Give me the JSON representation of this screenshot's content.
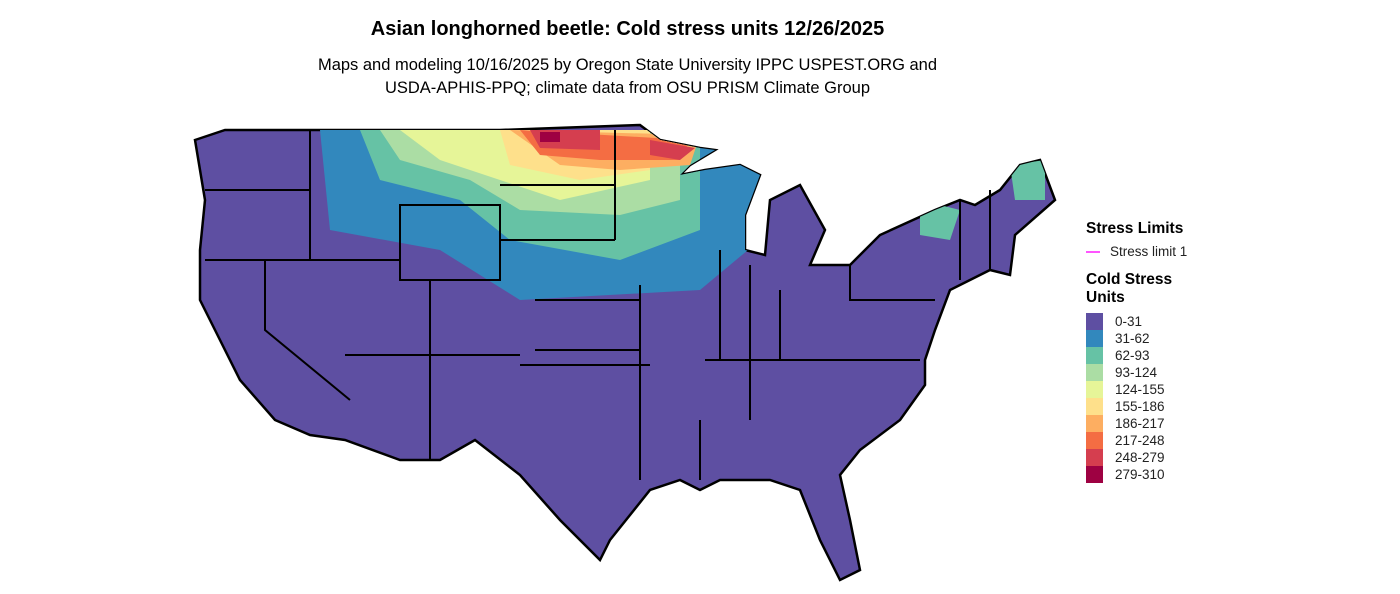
{
  "title": "Asian longhorned beetle: Cold stress units 12/26/2025",
  "subtitle_line1": "Maps and modeling 10/16/2025 by Oregon State University IPPC USPEST.ORG and",
  "subtitle_line2": "USDA-APHIS-PPQ; climate data from OSU PRISM Climate Group",
  "legend": {
    "stress_limits_title": "Stress Limits",
    "stress_limit_label": "Stress limit 1",
    "stress_limit_color": "#ff55ff",
    "units_title_1": "Cold Stress",
    "units_title_2": "Units",
    "classes": [
      {
        "label": "0-31",
        "color": "#5E4FA2"
      },
      {
        "label": "31-62",
        "color": "#3288BD"
      },
      {
        "label": "62-93",
        "color": "#66C2A5"
      },
      {
        "label": "93-124",
        "color": "#ABDDA4"
      },
      {
        "label": "124-155",
        "color": "#E6F598"
      },
      {
        "label": "155-186",
        "color": "#FEE08B"
      },
      {
        "label": "186-217",
        "color": "#FDAE61"
      },
      {
        "label": "217-248",
        "color": "#F46D43"
      },
      {
        "label": "248-279",
        "color": "#D53E4F"
      },
      {
        "label": "279-310",
        "color": "#9E0142"
      }
    ]
  }
}
